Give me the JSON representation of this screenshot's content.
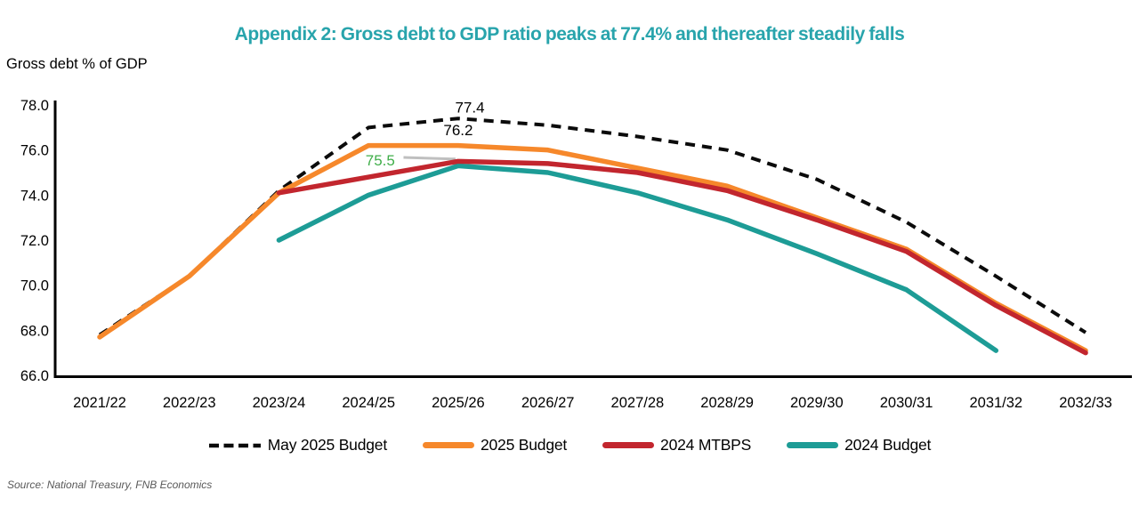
{
  "title": "Appendix 2: Gross debt to GDP ratio peaks at 77.4% and thereafter steadily falls",
  "y_axis_title": "Gross debt % of GDP",
  "source_note": "Source: National Treasury, FNB Economics",
  "colors": {
    "title": "#28A4AC",
    "axis": "#000000",
    "dashed_black": "#0B0B0B",
    "orange": "#F6882B",
    "red": "#C2262E",
    "teal": "#1D9C96",
    "annotation_green": "#3FAE49",
    "leader_gray": "#BFBFBF",
    "source_text": "#595959"
  },
  "chart_data": {
    "type": "line",
    "categories": [
      "2021/22",
      "2022/23",
      "2023/24",
      "2024/25",
      "2025/26",
      "2026/27",
      "2027/28",
      "2028/29",
      "2029/30",
      "2030/31",
      "2031/32",
      "2032/33"
    ],
    "xlabel": "",
    "ylabel": "Gross debt % of GDP",
    "ylim": [
      66.0,
      78.0
    ],
    "yticks": [
      66.0,
      68.0,
      70.0,
      72.0,
      74.0,
      76.0,
      78.0
    ],
    "grid": false,
    "legend_position": "bottom",
    "series": [
      {
        "name": "May 2025 Budget",
        "color_key": "dashed_black",
        "dashed": true,
        "values": [
          67.8,
          70.4,
          74.2,
          77.0,
          77.4,
          77.1,
          76.6,
          76.0,
          74.7,
          72.8,
          70.4,
          67.9
        ]
      },
      {
        "name": "2025 Budget",
        "color_key": "orange",
        "dashed": false,
        "values": [
          67.7,
          70.4,
          74.1,
          76.2,
          76.2,
          76.0,
          75.2,
          74.4,
          73.0,
          71.6,
          69.2,
          67.1
        ]
      },
      {
        "name": "2024 Budget",
        "color_key": "teal",
        "dashed": false,
        "values": [
          null,
          null,
          72.0,
          74.0,
          75.3,
          75.0,
          74.1,
          72.9,
          71.4,
          69.8,
          67.1,
          null
        ]
      },
      {
        "name": "2024 MTBPS",
        "color_key": "red",
        "dashed": false,
        "values": [
          null,
          null,
          74.1,
          74.8,
          75.5,
          75.4,
          75.0,
          74.2,
          72.9,
          71.5,
          69.1,
          67.0
        ]
      }
    ],
    "annotations": [
      {
        "text": "77.4",
        "xi": 4.13,
        "v": 77.9,
        "color_key": "axis"
      },
      {
        "text": "76.2",
        "xi": 4.0,
        "v": 76.9,
        "color_key": "axis"
      },
      {
        "text": "75.5",
        "xi": 3.13,
        "v": 75.55,
        "color_key": "annotation_green"
      }
    ],
    "callout_line": {
      "x1": 3.39,
      "v1": 75.67,
      "x2": 3.97,
      "v2": 75.6,
      "color_key": "leader_gray"
    }
  },
  "legend": [
    {
      "label": "May 2025 Budget",
      "color_key": "dashed_black",
      "dashed": true
    },
    {
      "label": "2025 Budget",
      "color_key": "orange",
      "dashed": false
    },
    {
      "label": "2024 MTBPS",
      "color_key": "red",
      "dashed": false
    },
    {
      "label": "2024 Budget",
      "color_key": "teal",
      "dashed": false
    }
  ]
}
